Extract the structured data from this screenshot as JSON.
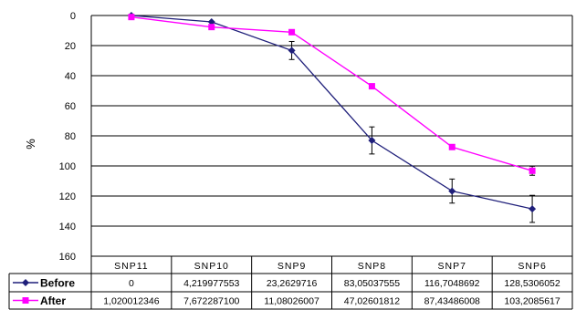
{
  "chart_data": {
    "type": "line",
    "categories": [
      "SNP11",
      "SNP10",
      "SNP9",
      "SNP8",
      "SNP7",
      "SNP6"
    ],
    "ylabel": "%",
    "ylim": [
      0,
      160
    ],
    "y_inverted": true,
    "yticks": [
      0,
      20,
      40,
      60,
      80,
      100,
      120,
      140,
      160
    ],
    "grid": true,
    "series": [
      {
        "name": "Before",
        "color": "#1f1f7a",
        "marker": "diamond",
        "values": [
          0,
          4.219977553,
          23.2629716,
          83.05037555,
          116.7048692,
          128.5306052
        ],
        "value_labels": [
          "0",
          "4,219977553",
          "23,2629716",
          "83,05037555",
          "116,7048692",
          "128,5306052"
        ],
        "error": [
          0,
          0,
          6,
          9,
          8,
          9
        ]
      },
      {
        "name": "After",
        "color": "#ff00ff",
        "marker": "square",
        "values": [
          1.020012346,
          7.6722871,
          11.08026007,
          47.02601812,
          87.43486008,
          103.2085617
        ],
        "value_labels": [
          "1,020012346",
          "7,672287100",
          "11,08026007",
          "47,02601812",
          "87,43486008",
          "103,2085617"
        ],
        "error": [
          0,
          0,
          0,
          0,
          0,
          3
        ]
      }
    ]
  }
}
